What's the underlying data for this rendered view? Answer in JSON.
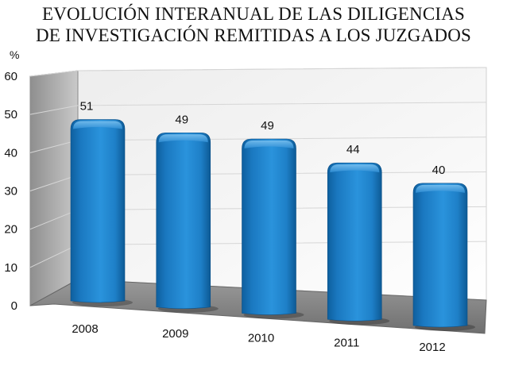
{
  "chart_data": {
    "type": "bar",
    "title_lines": [
      "EVOLUCIÓN INTERANUAL DE LAS DILIGENCIAS",
      "DE INVESTIGACIÓN REMITIDAS A LOS JUZGADOS"
    ],
    "ylabel": "%",
    "categories": [
      "2008",
      "2009",
      "2010",
      "2011",
      "2012"
    ],
    "values": [
      51,
      49,
      49,
      44,
      40
    ],
    "data_labels": [
      "51",
      "49",
      "49",
      "44",
      "40"
    ],
    "ylim": [
      0,
      60
    ],
    "yticks": [
      0,
      10,
      20,
      30,
      40,
      50,
      60
    ],
    "grid": true,
    "legend": "none",
    "bar_color": "#1e82c8"
  }
}
